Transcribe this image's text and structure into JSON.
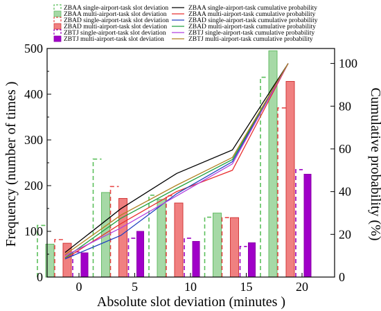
{
  "chart_data": {
    "type": "bar",
    "title": "",
    "xlabel": "Absolute slot deviation (minutes )",
    "ylabel": "Frequency (number of times )",
    "y2label": "Cumulative probability (%)",
    "categories": [
      "0",
      "5",
      "10",
      "15",
      "20"
    ],
    "x_ticks": [
      "0",
      "5",
      "10",
      "15",
      "20"
    ],
    "ylim": [
      0,
      500
    ],
    "y_ticks": [
      "0",
      "100",
      "200",
      "300",
      "400",
      "500"
    ],
    "y2lim": [
      0,
      107
    ],
    "y2_ticks": [
      "0",
      "20",
      "40",
      "60",
      "80",
      "100"
    ],
    "bar_series": [
      {
        "name": "ZBAA single-airport-task slot deviation",
        "style": "dashed",
        "color": "#5bbf5b",
        "values": [
          113,
          258,
          179,
          131,
          437
        ]
      },
      {
        "name": "ZBAA multi-airport-task slot deviation",
        "style": "solid",
        "color": "#66bb66",
        "fill": "#a6d9a6",
        "values": [
          72,
          185,
          170,
          140,
          495
        ]
      },
      {
        "name": "ZBAD single-airport-task slot deviation",
        "style": "dashed",
        "color": "#e84a4a",
        "values": [
          82,
          198,
          178,
          130,
          370
        ]
      },
      {
        "name": "ZBAD multi-airport-task slot deviation",
        "style": "solid",
        "color": "#d23a3a",
        "fill": "#f08080",
        "values": [
          74,
          172,
          162,
          130,
          428
        ]
      },
      {
        "name": "ZBTJ single-airport-task slot deviation",
        "style": "dashed",
        "color": "#9c00c0",
        "values": [
          55,
          85,
          85,
          67,
          235
        ]
      },
      {
        "name": "ZBTJ multi-airport-task slot deviation",
        "style": "solid",
        "color": "#8c00aa",
        "fill": "#a000c8",
        "values": [
          53,
          100,
          78,
          75,
          225
        ]
      }
    ],
    "line_series": [
      {
        "name": "ZBAA single-airport-task cumulative probability",
        "color": "#000000",
        "values": [
          11.5,
          32,
          48.5,
          59.5,
          100
        ]
      },
      {
        "name": "ZBAA multi-airport-task cumulative probability",
        "color": "#e83030",
        "values": [
          8.5,
          25,
          40,
          50,
          100
        ]
      },
      {
        "name": "ZBAD single-airport-task cumulative probability",
        "color": "#2040c0",
        "values": [
          8.5,
          19.5,
          39,
          54,
          100
        ]
      },
      {
        "name": "ZBAD multi-airport-task cumulative probability",
        "color": "#20a040",
        "values": [
          9,
          27.5,
          41.5,
          55,
          100
        ]
      },
      {
        "name": "ZBTJ single-airport-task cumulative probability",
        "color": "#b040e0",
        "values": [
          10,
          23,
          38,
          53,
          100
        ]
      },
      {
        "name": "ZBTJ multi-airport-task cumulative probability",
        "color": "#b08020",
        "values": [
          10.5,
          29,
          43,
          56,
          100
        ]
      }
    ],
    "grid": false,
    "legend_position": "top"
  }
}
